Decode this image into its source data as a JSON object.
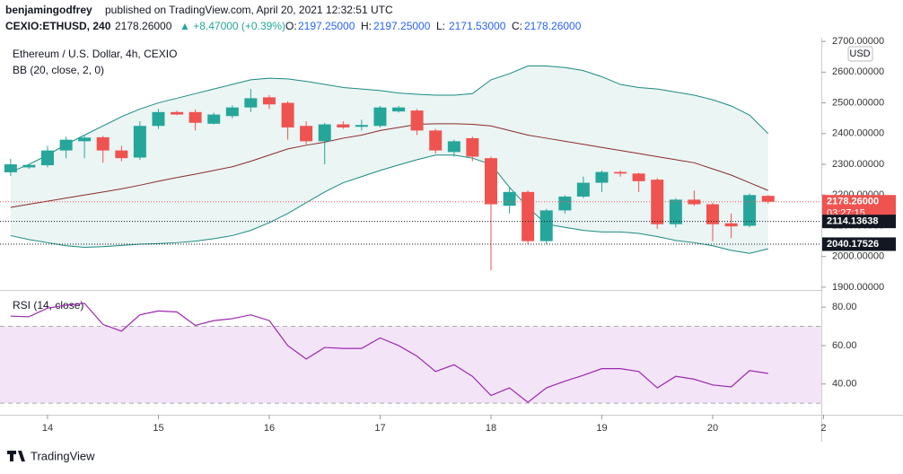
{
  "header": {
    "author": "benjamingodfrey",
    "published": "published on TradingView.com, April 20, 2021 12:32:51 UTC",
    "symbol": "CEXIO:ETHUSD, 240",
    "last": "2178.26000",
    "change": "▲ +8.47000 (+0.39%)",
    "ohlc": [
      {
        "label": "O:",
        "value": "2197.25000"
      },
      {
        "label": "H:",
        "value": "2197.25000"
      },
      {
        "label": "L:",
        "value": "2171.53000"
      },
      {
        "label": "C:",
        "value": "2178.26000"
      }
    ]
  },
  "footer": {
    "brand": "TradingView"
  },
  "chart_data": [
    {
      "type": "candlestick",
      "title": "Ethereum / U.S. Dollar, 4h, CEXIO",
      "indicator": "BB (20, close, 2, 0)",
      "currency": "USD",
      "x": [
        13.667,
        13.833,
        14,
        14.167,
        14.333,
        14.5,
        14.667,
        14.833,
        15,
        15.167,
        15.333,
        15.5,
        15.667,
        15.833,
        16,
        16.167,
        16.333,
        16.5,
        16.667,
        16.833,
        17,
        17.167,
        17.333,
        17.5,
        17.667,
        17.833,
        18,
        18.167,
        18.333,
        18.5,
        18.667,
        18.833,
        19,
        19.167,
        19.333,
        19.5,
        19.667,
        19.833,
        20,
        20.167,
        20.333,
        20.5
      ],
      "open": [
        2274,
        2290,
        2297,
        2345,
        2375,
        2388,
        2345,
        2322,
        2425,
        2470,
        2470,
        2432,
        2457,
        2485,
        2518,
        2500,
        2425,
        2375,
        2430,
        2422,
        2425,
        2472,
        2475,
        2410,
        2340,
        2385,
        2320,
        2165,
        2210,
        2050,
        2150,
        2195,
        2240,
        2275,
        2270,
        2250,
        2105,
        2185,
        2170,
        2108,
        2100,
        2197.25
      ],
      "high": [
        2318,
        2302,
        2360,
        2390,
        2395,
        2392,
        2360,
        2440,
        2480,
        2475,
        2478,
        2468,
        2492,
        2545,
        2525,
        2505,
        2440,
        2435,
        2440,
        2445,
        2490,
        2490,
        2480,
        2415,
        2380,
        2390,
        2325,
        2225,
        2215,
        2155,
        2200,
        2260,
        2280,
        2280,
        2272,
        2255,
        2190,
        2215,
        2175,
        2140,
        2205,
        2200
      ],
      "low": [
        2262,
        2285,
        2290,
        2320,
        2320,
        2305,
        2310,
        2315,
        2415,
        2460,
        2410,
        2430,
        2450,
        2470,
        2480,
        2380,
        2365,
        2300,
        2415,
        2410,
        2420,
        2468,
        2395,
        2335,
        2325,
        2310,
        1955,
        2140,
        2040,
        2040,
        2140,
        2190,
        2210,
        2260,
        2210,
        2090,
        2095,
        2165,
        2050,
        2060,
        2095,
        2171.53
      ],
      "close": [
        2300,
        2298,
        2345,
        2380,
        2387,
        2345,
        2320,
        2425,
        2470,
        2462,
        2435,
        2462,
        2485,
        2515,
        2495,
        2420,
        2375,
        2430,
        2420,
        2428,
        2485,
        2485,
        2410,
        2345,
        2375,
        2325,
        2170,
        2210,
        2050,
        2150,
        2195,
        2240,
        2275,
        2270,
        2245,
        2105,
        2185,
        2170,
        2105,
        2098,
        2200,
        2178.26
      ],
      "up_color": "#26a69a",
      "down_color": "#ef5350",
      "series": [
        {
          "color": "#1b8a80",
          "values": [
            2275,
            2300,
            2330,
            2365,
            2395,
            2425,
            2455,
            2480,
            2500,
            2515,
            2530,
            2545,
            2560,
            2575,
            2580,
            2578,
            2570,
            2560,
            2550,
            2545,
            2540,
            2532,
            2528,
            2525,
            2525,
            2530,
            2575,
            2595,
            2620,
            2620,
            2615,
            2605,
            2585,
            2560,
            2550,
            2545,
            2535,
            2525,
            2510,
            2490,
            2460,
            2400
          ]
        },
        {
          "color": "#8b2b2b",
          "values": [
            2160,
            2170,
            2180,
            2190,
            2200,
            2210,
            2220,
            2232,
            2245,
            2257,
            2268,
            2280,
            2292,
            2310,
            2330,
            2350,
            2362,
            2372,
            2385,
            2395,
            2410,
            2420,
            2430,
            2432,
            2432,
            2430,
            2425,
            2410,
            2395,
            2385,
            2375,
            2365,
            2355,
            2345,
            2335,
            2325,
            2315,
            2305,
            2285,
            2265,
            2240,
            2215
          ]
        },
        {
          "color": "#1b8a80",
          "values": [
            2068,
            2055,
            2045,
            2035,
            2030,
            2032,
            2036,
            2040,
            2042,
            2045,
            2050,
            2058,
            2068,
            2085,
            2110,
            2140,
            2175,
            2210,
            2240,
            2260,
            2280,
            2298,
            2315,
            2330,
            2330,
            2320,
            2300,
            2225,
            2160,
            2105,
            2095,
            2085,
            2080,
            2080,
            2075,
            2065,
            2052,
            2045,
            2035,
            2020,
            2010,
            2025
          ]
        }
      ],
      "band_fill": "#eaf5f4",
      "xlim": [
        13.571,
        20.98
      ],
      "xticks": [
        14,
        15,
        16,
        17,
        18,
        19,
        20,
        {
          "value": 21,
          "label": "2"
        }
      ],
      "ylim": [
        1894,
        2712
      ],
      "yticks": [
        {
          "value": 1900,
          "label": "1900.00000"
        },
        {
          "value": 2000,
          "label": "2000.00000"
        },
        {
          "value": 2100,
          "label": "2100.00000"
        },
        {
          "value": 2200,
          "label": "2200.00000"
        },
        {
          "value": 2300,
          "label": "2300.00000"
        },
        {
          "value": 2400,
          "label": "2400.00000"
        },
        {
          "value": 2500,
          "label": "2500.00000"
        },
        {
          "value": 2600,
          "label": "2600.00000"
        },
        {
          "value": 2700,
          "label": "2700.00000"
        }
      ],
      "price_lines": [
        {
          "value": 2178.26,
          "label": "2178.26000",
          "countdown": "03:27:15",
          "color": "#ef5350"
        },
        {
          "value": 2114.13638,
          "label": "2114.13638",
          "color": "#131722"
        },
        {
          "value": 2040.17526,
          "label": "2040.17526",
          "color": "#131722"
        }
      ]
    },
    {
      "type": "line",
      "title": "RSI (14, close)",
      "series": [
        {
          "color": "#9c27b0",
          "values": [
            75.3,
            75,
            79.5,
            81,
            82,
            71,
            67.5,
            76,
            78,
            77.5,
            70.5,
            73,
            74,
            76,
            73,
            60,
            53,
            59,
            58.5,
            58.5,
            64,
            60,
            54.5,
            46.5,
            50,
            44,
            34,
            38,
            30.5,
            38,
            41.5,
            44.5,
            48,
            48,
            46.5,
            38,
            44,
            42.5,
            39.5,
            38.5,
            47,
            45.5
          ]
        }
      ],
      "bands": [
        70,
        30
      ],
      "band_color": "#f3e5f7",
      "ylim": [
        24,
        88
      ],
      "yticks": [
        {
          "value": 40,
          "label": "40.00"
        },
        {
          "value": 60,
          "label": "60.00"
        },
        {
          "value": 80,
          "label": "80.00"
        }
      ]
    }
  ]
}
